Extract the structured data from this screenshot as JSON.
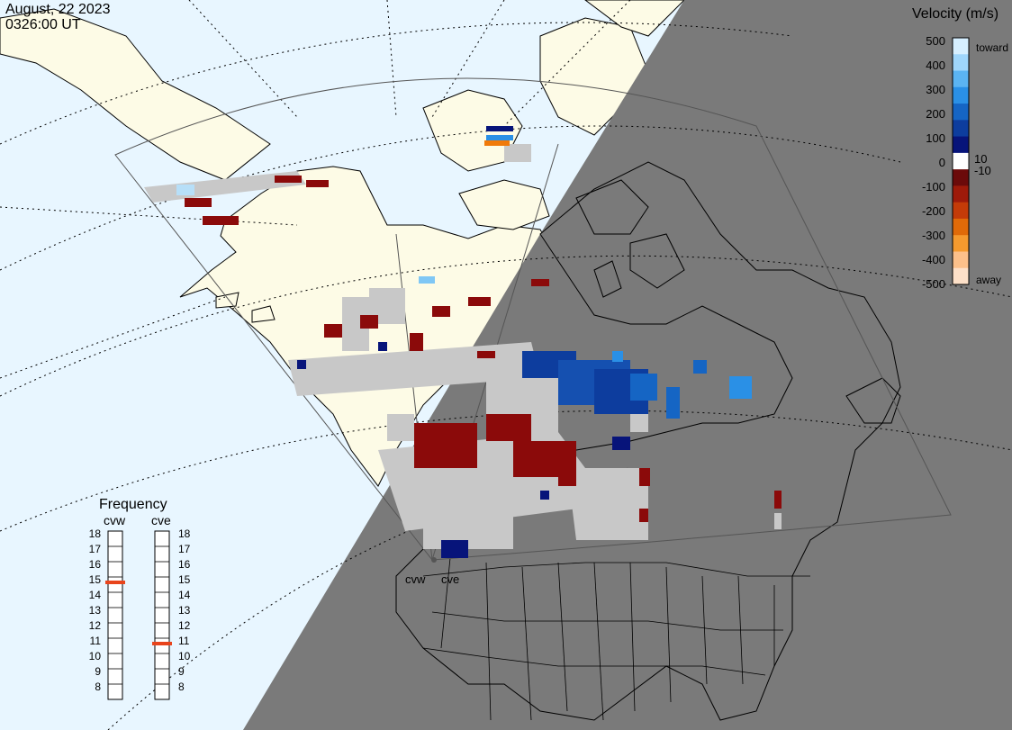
{
  "header": {
    "date": "August, 22 2023",
    "time": "0326:00 UT"
  },
  "colorbar": {
    "title": "Velocity (m/s)",
    "ticks": [
      "500",
      "400",
      "300",
      "200",
      "100",
      "10",
      "0",
      "-10",
      "-100",
      "-200",
      "-300",
      "-400",
      "-500"
    ],
    "toward_label": "toward",
    "away_label": "away",
    "colors": [
      "#d6efff",
      "#9fd6fb",
      "#5bb4f2",
      "#2a90e6",
      "#1565c4",
      "#0d3d9e",
      "#07147a",
      "#ffffff",
      "#6b0a0a",
      "#9e1a0a",
      "#c43b08",
      "#e06a08",
      "#f59a2e",
      "#fcc08a",
      "#fde0c8"
    ]
  },
  "frequency_panel": {
    "title": "Frequency",
    "radars": [
      {
        "name": "cvw",
        "selected_mhz": 15
      },
      {
        "name": "cve",
        "selected_mhz": 11
      }
    ],
    "scale": [
      "18",
      "17",
      "16",
      "15",
      "14",
      "13",
      "12",
      "11",
      "10",
      "9",
      "8"
    ],
    "marker_color": "#e8441c"
  },
  "map": {
    "ocean_color": "#e8f6ff",
    "land_color": "#fdfbe6",
    "night_color": "#7a7a7a",
    "ground_scatter_color": "#c8c8c8",
    "station_labels": [
      "cvw",
      "cve"
    ]
  }
}
